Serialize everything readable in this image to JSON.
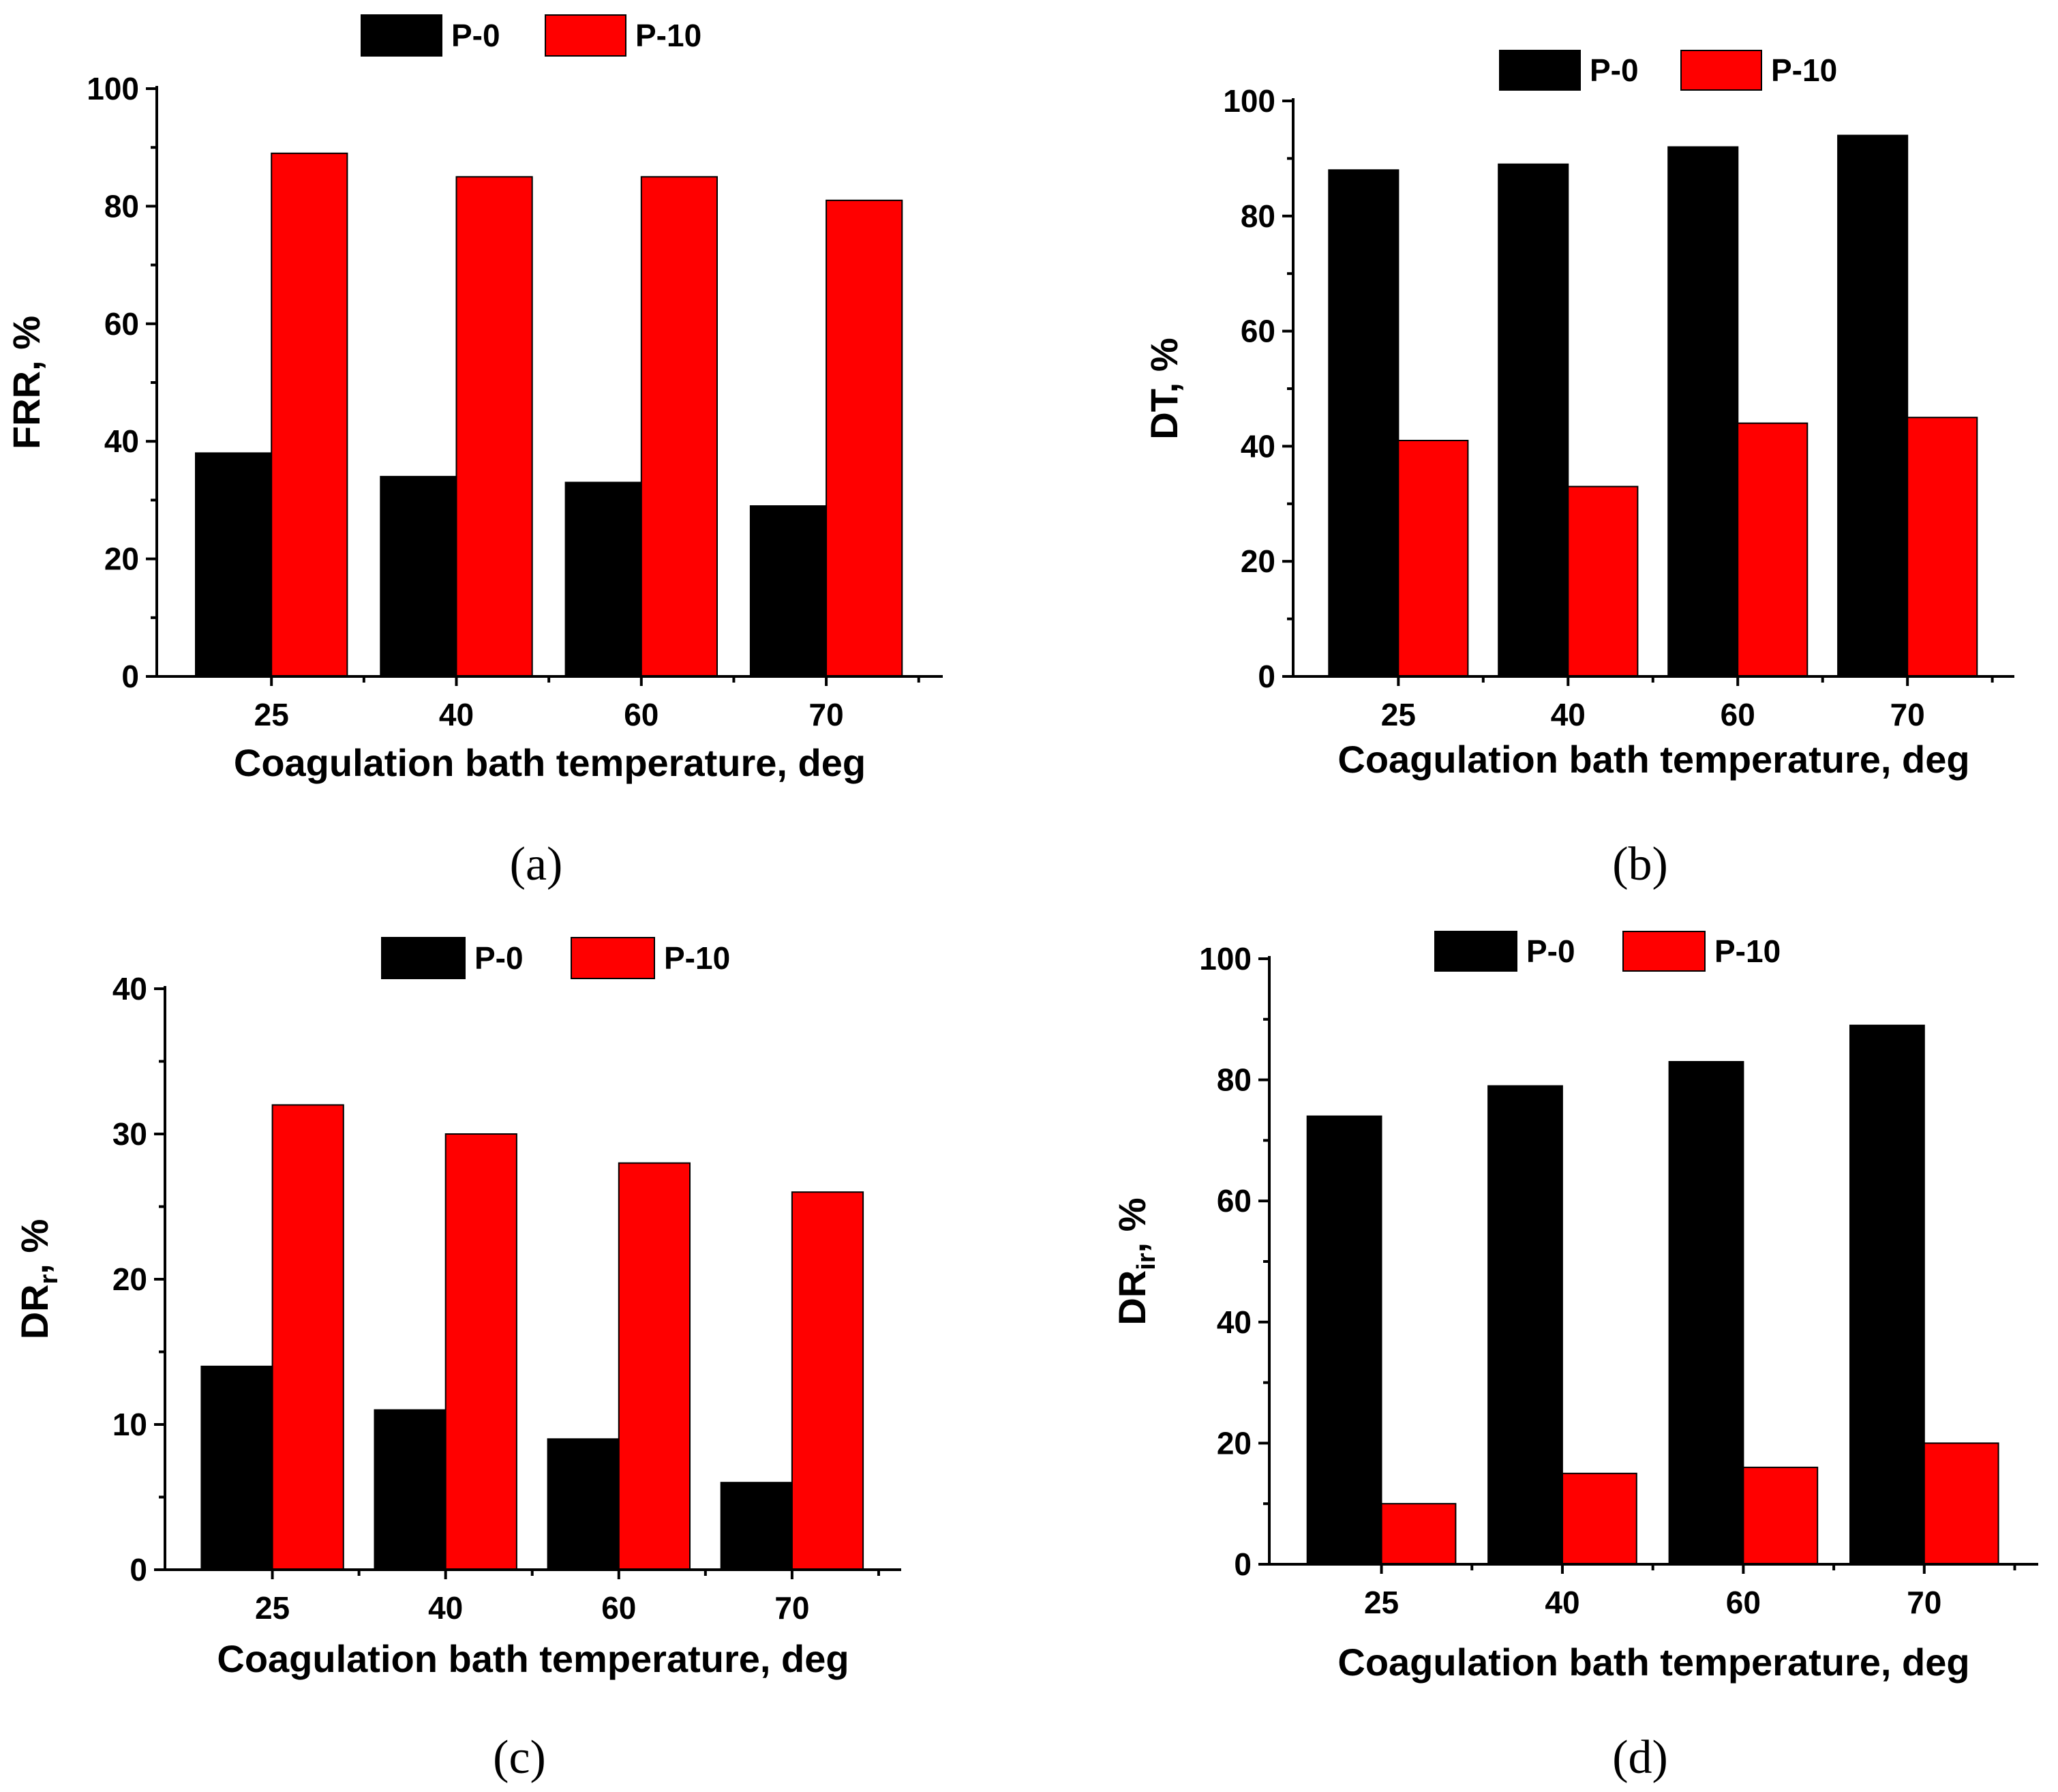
{
  "colors": {
    "P-0": "#000000",
    "P-10": "#ff0000"
  },
  "chart_data": [
    {
      "type": "bar",
      "panel_label": "(a)",
      "categories": [
        "25",
        "40",
        "60",
        "70"
      ],
      "series": [
        {
          "name": "P-0",
          "values": [
            38,
            34,
            33,
            29
          ]
        },
        {
          "name": "P-10",
          "values": [
            89,
            85,
            85,
            81
          ]
        }
      ],
      "xlabel": "Coagulation bath temperature, deg",
      "ylabel": "FRR, %",
      "ylim": [
        0,
        100
      ],
      "yticks": [
        0,
        20,
        40,
        60,
        80,
        100
      ],
      "legend": "top"
    },
    {
      "type": "bar",
      "panel_label": "(b)",
      "categories": [
        "25",
        "40",
        "60",
        "70"
      ],
      "series": [
        {
          "name": "P-0",
          "values": [
            88,
            89,
            92,
            94
          ]
        },
        {
          "name": "P-10",
          "values": [
            41,
            33,
            44,
            45
          ]
        }
      ],
      "xlabel": "Coagulation bath temperature, deg",
      "ylabel": "DT, %",
      "ylim": [
        0,
        100
      ],
      "yticks": [
        0,
        20,
        40,
        60,
        80,
        100
      ],
      "legend": "top"
    },
    {
      "type": "bar",
      "panel_label": "(c)",
      "categories": [
        "25",
        "40",
        "60",
        "70"
      ],
      "series": [
        {
          "name": "P-0",
          "values": [
            14,
            11,
            9,
            6
          ]
        },
        {
          "name": "P-10",
          "values": [
            32,
            30,
            28,
            26
          ]
        }
      ],
      "xlabel": "Coagulation bath temperature, deg",
      "ylabel": "DR",
      "ylabel_sub": "r",
      "ylabel_suffix": ", %",
      "ylim": [
        0,
        40
      ],
      "yticks": [
        0,
        10,
        20,
        30,
        40
      ],
      "legend": "top"
    },
    {
      "type": "bar",
      "panel_label": "(d)",
      "categories": [
        "25",
        "40",
        "60",
        "70"
      ],
      "series": [
        {
          "name": "P-0",
          "values": [
            74,
            79,
            83,
            89
          ]
        },
        {
          "name": "P-10",
          "values": [
            10,
            15,
            16,
            20
          ]
        }
      ],
      "xlabel": "Coagulation bath temperature, deg",
      "ylabel": "DR",
      "ylabel_sub": "ir",
      "ylabel_suffix": ", %",
      "ylim": [
        0,
        100
      ],
      "yticks": [
        0,
        20,
        40,
        60,
        80,
        100
      ],
      "legend": "top"
    }
  ]
}
